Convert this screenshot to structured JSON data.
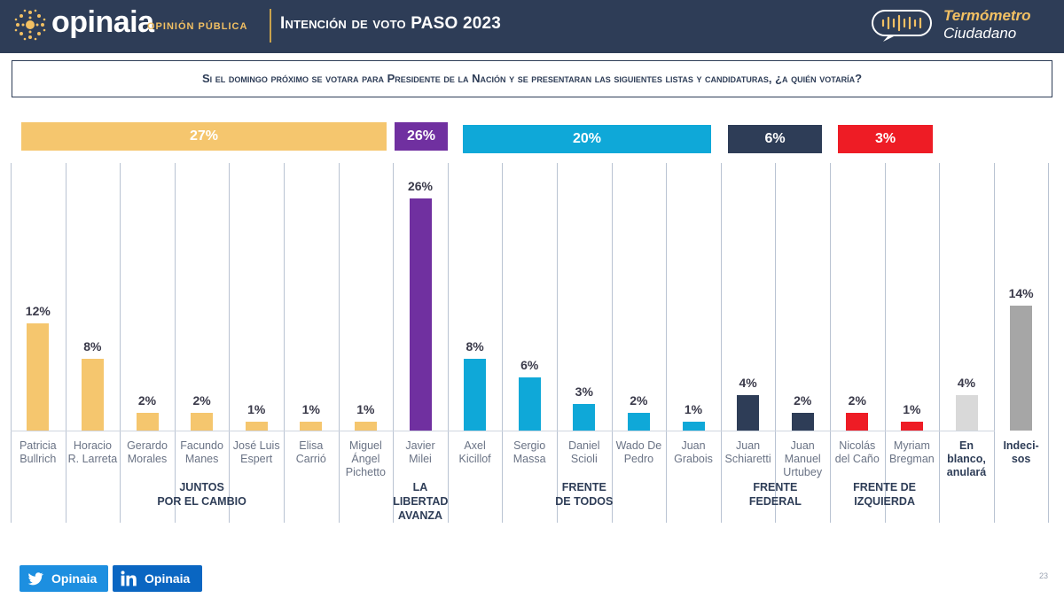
{
  "header": {
    "brand": "opinaia",
    "brand_sub": "OPINIÓN PÚBLICA",
    "title": "Intención de voto PASO 2023",
    "termo_line1": "Termómetro",
    "termo_line2": "Ciudadano"
  },
  "question": "Si el domingo próximo se votara para Presidente de la Nación y se presentaran las siguientes listas y candidaturas, ¿a quién votaría?",
  "colors": {
    "jxc": "#f5c66e",
    "lla": "#7030a0",
    "fdt": "#0fa8d8",
    "ff": "#2e3d57",
    "fi": "#ee1c25",
    "blank": "#d9d9d9",
    "undecided": "#a6a6a6",
    "header": "#2e3d57"
  },
  "chart_data": {
    "type": "bar",
    "title": "Intención de voto PASO 2023",
    "ylim": [
      0,
      26
    ],
    "categories": [
      "Patricia Bullrich",
      "Horacio R. Larreta",
      "Gerardo Morales",
      "Facundo Manes",
      "José Luis Espert",
      "Elisa Carrió",
      "Miguel Ángel Pichetto",
      "Javier Milei",
      "Axel Kicillof",
      "Sergio Massa",
      "Daniel Scioli",
      "Wado De Pedro",
      "Juan Grabois",
      "Juan Schiaretti",
      "Juan Manuel Urtubey",
      "Nicolás del Caño",
      "Myriam Bregman",
      "En blanco, anulará",
      "Indecisos"
    ],
    "values": [
      12,
      8,
      2,
      2,
      1,
      1,
      1,
      26,
      8,
      6,
      3,
      2,
      1,
      4,
      2,
      2,
      1,
      4,
      14
    ],
    "value_labels": [
      "12%",
      "8%",
      "2%",
      "2%",
      "1%",
      "1%",
      "1%",
      "26%",
      "8%",
      "6%",
      "3%",
      "2%",
      "1%",
      "4%",
      "2%",
      "2%",
      "1%",
      "4%",
      "14%"
    ],
    "candidate_lines": [
      [
        "Patricia",
        "Bullrich"
      ],
      [
        "Horacio",
        "R. Larreta"
      ],
      [
        "Gerardo",
        "Morales"
      ],
      [
        "Facundo",
        "Manes"
      ],
      [
        "José Luis",
        "Espert"
      ],
      [
        "Elisa",
        "Carrió"
      ],
      [
        "Miguel",
        "Ángel",
        "Pichetto"
      ],
      [
        "Javier",
        "Milei"
      ],
      [
        "Axel",
        "Kicillof"
      ],
      [
        "Sergio",
        "Massa"
      ],
      [
        "Daniel",
        "Scioli"
      ],
      [
        "Wado De",
        "Pedro"
      ],
      [
        "Juan",
        "Grabois"
      ],
      [
        "Juan",
        "Schiaretti"
      ],
      [
        "Juan",
        "Manuel",
        "Urtubey"
      ],
      [
        "Nicolás",
        "del Caño"
      ],
      [
        "Myriam",
        "Bregman"
      ],
      [
        "En",
        "blanco,",
        "anulará"
      ],
      [
        "Indeci-",
        "sos"
      ]
    ],
    "groups": [
      {
        "name_lines": [
          "JUNTOS",
          "POR EL CAMBIO"
        ],
        "total": 27,
        "total_label": "27%",
        "color": "#f5c66e"
      },
      {
        "name_lines": [
          "LA",
          "LIBERTAD",
          "AVANZA"
        ],
        "total": 26,
        "total_label": "26%",
        "color": "#7030a0"
      },
      {
        "name_lines": [
          "FRENTE",
          "DE TODOS"
        ],
        "total": 20,
        "total_label": "20%",
        "color": "#0fa8d8"
      },
      {
        "name_lines": [
          "FRENTE",
          "FEDERAL"
        ],
        "total": 6,
        "total_label": "6%",
        "color": "#2e3d57"
      },
      {
        "name_lines": [
          "FRENTE DE",
          "IZQUIERDA"
        ],
        "total": 3,
        "total_label": "3%",
        "color": "#ee1c25"
      }
    ]
  },
  "footer": {
    "twitter": "Opinaia",
    "linkedin": "Opinaia",
    "page": "23"
  }
}
